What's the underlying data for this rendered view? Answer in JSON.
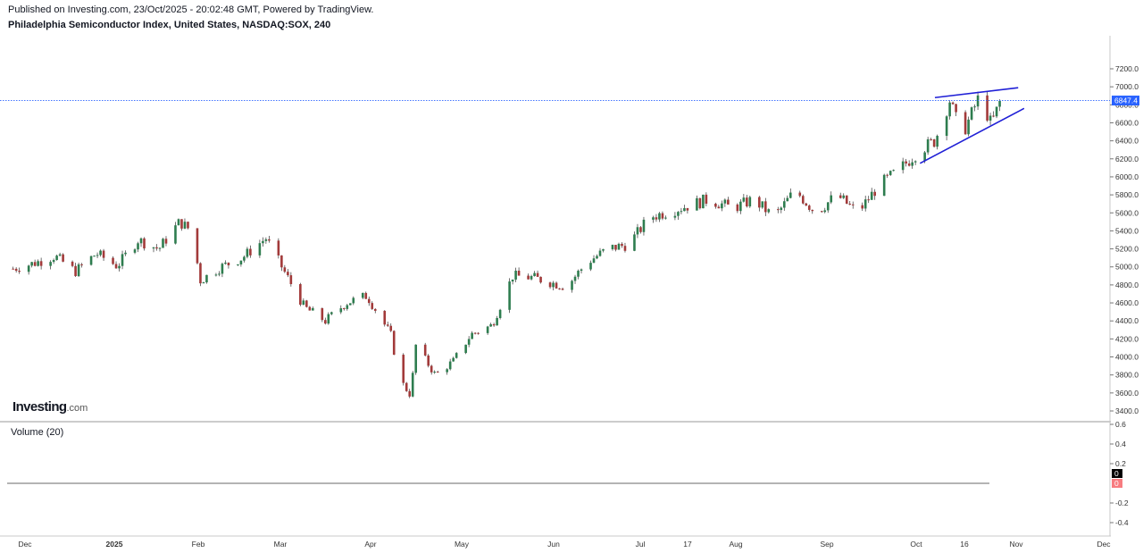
{
  "header": {
    "published": "Published on Investing.com, 23/Oct/2025 - 20:02:48 GMT, Powered by TradingView.",
    "title": "Philadelphia Semiconductor Index, United States, NASDAQ:SOX, 240"
  },
  "watermark": {
    "brand": "Investing",
    "suffix": ".com"
  },
  "volume_panel": {
    "label": "Volume (20)",
    "ticks": [
      "0.6",
      "0.4",
      "0.2",
      "-0.2",
      "-0.4"
    ],
    "badges": [
      "0",
      "0"
    ],
    "badge_colors": [
      "#000000",
      "#f77c80"
    ]
  },
  "colors": {
    "up": "#2e7d4f",
    "down": "#a23a3a",
    "trendline": "#1f1fd6",
    "last_price": "#2962ff"
  },
  "chart_data": {
    "type": "candlestick",
    "title": "Philadelphia Semiconductor Index, United States, NASDAQ:SOX, 240",
    "ylim": [
      3300,
      7300
    ],
    "y_ticks": [
      "7200.0",
      "7000.0",
      "6800.0",
      "6600.0",
      "6400.0",
      "6200.0",
      "6000.0",
      "5800.0",
      "5600.0",
      "5400.0",
      "5200.0",
      "5000.0",
      "4800.0",
      "4600.0",
      "4400.0",
      "4200.0",
      "4000.0",
      "3800.0",
      "3600.0",
      "3400.0"
    ],
    "x_ticks": [
      "Dec",
      "2025",
      "Feb",
      "Mar",
      "Apr",
      "May",
      "Jun",
      "Jul",
      "17",
      "Aug",
      "Sep",
      "Oct",
      "16",
      "Nov",
      "Dec"
    ],
    "last_price": "6847.4",
    "series": [
      {
        "x": "Nov 25",
        "value": 4980
      },
      {
        "x": "Dec 2",
        "value": 5040
      },
      {
        "x": "Dec 9",
        "value": 5120
      },
      {
        "x": "Dec 16",
        "value": 4950
      },
      {
        "x": "Dec 23",
        "value": 5150
      },
      {
        "x": "Dec 30",
        "value": 5010
      },
      {
        "x": "Jan 6",
        "value": 5300
      },
      {
        "x": "Jan 13",
        "value": 5200
      },
      {
        "x": "Jan 20",
        "value": 5500
      },
      {
        "x": "Jan 24",
        "value": 5400
      },
      {
        "x": "Jan 27",
        "value": 4850
      },
      {
        "x": "Feb 3",
        "value": 5000
      },
      {
        "x": "Feb 10",
        "value": 5100
      },
      {
        "x": "Feb 18",
        "value": 5320
      },
      {
        "x": "Feb 25",
        "value": 4900
      },
      {
        "x": "Mar 3",
        "value": 4550
      },
      {
        "x": "Mar 10",
        "value": 4400
      },
      {
        "x": "Mar 17",
        "value": 4600
      },
      {
        "x": "Mar 24",
        "value": 4680
      },
      {
        "x": "Apr 1",
        "value": 4250
      },
      {
        "x": "Apr 4",
        "value": 3750
      },
      {
        "x": "Apr 8",
        "value": 3560
      },
      {
        "x": "Apr 9",
        "value": 4150
      },
      {
        "x": "Apr 16",
        "value": 3800
      },
      {
        "x": "Apr 22",
        "value": 3950
      },
      {
        "x": "Apr 28",
        "value": 4250
      },
      {
        "x": "May 5",
        "value": 4350
      },
      {
        "x": "May 12",
        "value": 4900
      },
      {
        "x": "May 19",
        "value": 4880
      },
      {
        "x": "May 30",
        "value": 4780
      },
      {
        "x": "Jun 6",
        "value": 5050
      },
      {
        "x": "Jun 13",
        "value": 5200
      },
      {
        "x": "Jun 20",
        "value": 5250
      },
      {
        "x": "Jun 27",
        "value": 5550
      },
      {
        "x": "Jul 7",
        "value": 5650
      },
      {
        "x": "Jul 17",
        "value": 5750
      },
      {
        "x": "Jul 25",
        "value": 5650
      },
      {
        "x": "Aug 1",
        "value": 5750
      },
      {
        "x": "Aug 8",
        "value": 5550
      },
      {
        "x": "Aug 15",
        "value": 5850
      },
      {
        "x": "Aug 22",
        "value": 5600
      },
      {
        "x": "Aug 29",
        "value": 5800
      },
      {
        "x": "Sep 5",
        "value": 5600
      },
      {
        "x": "Sep 12",
        "value": 5900
      },
      {
        "x": "Sep 19",
        "value": 6080
      },
      {
        "x": "Sep 26",
        "value": 6300
      },
      {
        "x": "Oct 1",
        "value": 6400
      },
      {
        "x": "Oct 6",
        "value": 6850
      },
      {
        "x": "Oct 10",
        "value": 6450
      },
      {
        "x": "Oct 14",
        "value": 6750
      },
      {
        "x": "Oct 16",
        "value": 6900
      },
      {
        "x": "Oct 20",
        "value": 6580
      },
      {
        "x": "Oct 23",
        "value": 6847
      }
    ],
    "trendlines": [
      {
        "name": "upper",
        "from": {
          "x": "Oct 1",
          "y": 6880
        },
        "to": {
          "x": "Oct 29",
          "y": 6990
        }
      },
      {
        "name": "lower",
        "from": {
          "x": "Sep 26",
          "y": 6150
        },
        "to": {
          "x": "Oct 31",
          "y": 6760
        }
      }
    ]
  }
}
